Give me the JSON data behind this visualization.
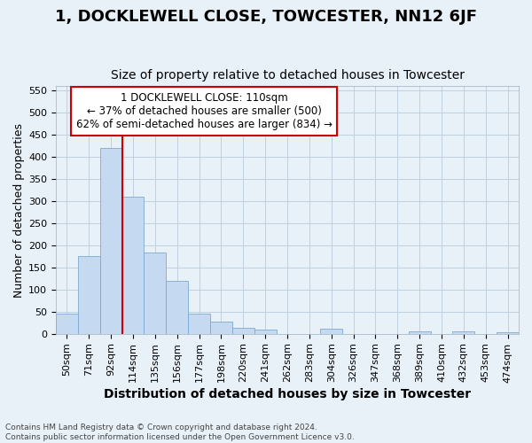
{
  "title": "1, DOCKLEWELL CLOSE, TOWCESTER, NN12 6JF",
  "subtitle": "Size of property relative to detached houses in Towcester",
  "xlabel": "Distribution of detached houses by size in Towcester",
  "ylabel": "Number of detached properties",
  "footer_line1": "Contains HM Land Registry data © Crown copyright and database right 2024.",
  "footer_line2": "Contains public sector information licensed under the Open Government Licence v3.0.",
  "categories": [
    "50sqm",
    "71sqm",
    "92sqm",
    "114sqm",
    "135sqm",
    "156sqm",
    "177sqm",
    "198sqm",
    "220sqm",
    "241sqm",
    "262sqm",
    "283sqm",
    "304sqm",
    "326sqm",
    "347sqm",
    "368sqm",
    "389sqm",
    "410sqm",
    "432sqm",
    "453sqm",
    "474sqm"
  ],
  "values": [
    46,
    175,
    420,
    310,
    183,
    120,
    46,
    27,
    13,
    10,
    0,
    0,
    11,
    0,
    0,
    0,
    5,
    0,
    5,
    0,
    4
  ],
  "bar_color": "#c5d9f1",
  "bar_edge_color": "#7baad4",
  "grid_color": "#bfcfdf",
  "background_color": "#e8f0f8",
  "vline_color": "#cc0000",
  "vline_xindex": 3,
  "annotation_line1": "1 DOCKLEWELL CLOSE: 110sqm",
  "annotation_line2": "← 37% of detached houses are smaller (500)",
  "annotation_line3": "62% of semi-detached houses are larger (834) →",
  "annotation_box_facecolor": "#ffffff",
  "annotation_box_edgecolor": "#cc0000",
  "ylim_max": 560,
  "yticks": [
    0,
    50,
    100,
    150,
    200,
    250,
    300,
    350,
    400,
    450,
    500,
    550
  ],
  "title_fontsize": 13,
  "subtitle_fontsize": 10,
  "xlabel_fontsize": 10,
  "ylabel_fontsize": 9
}
